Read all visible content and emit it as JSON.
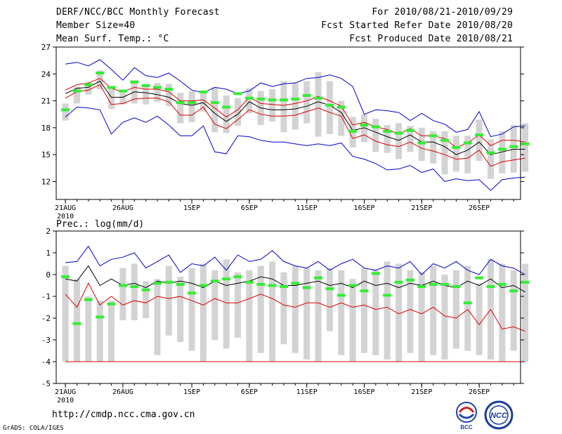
{
  "header": {
    "title": "DERF/NCC/BCC Monthly Forecast",
    "member_size": "Member Size=40",
    "variable": "Mean Surf. Temp.: °C",
    "period": "For 2010/08/21-2010/09/29",
    "fcst_started": "Fcst Started Refer Date 2010/08/20",
    "fcst_produced": "Fcst Produced Date 2010/08/21"
  },
  "footer": {
    "url": "http://cmdp.ncc.cma.gov.cn",
    "credit": "GrADS: COLA/IGES",
    "logo_bcc": "BCC",
    "logo_ncc": "NCC"
  },
  "colors": {
    "max_line": "#0000cc",
    "mean_line": "#000000",
    "band_line": "#dd0000",
    "box": "#d3d3d3",
    "obs": "#33ee33"
  },
  "chart_data": [
    {
      "type": "box-line",
      "title": "Mean Surf. Temp.: °C",
      "ylim": [
        10,
        27
      ],
      "yticks": [
        12,
        15,
        18,
        21,
        24,
        27
      ],
      "xticks": [
        {
          "day": 1,
          "label": "21AUG",
          "sub": "2010"
        },
        {
          "day": 6,
          "label": "26AUG"
        },
        {
          "day": 12,
          "label": "1SEP"
        },
        {
          "day": 17,
          "label": "6SEP"
        },
        {
          "day": 22,
          "label": "11SEP"
        },
        {
          "day": 27,
          "label": "16SEP"
        },
        {
          "day": 32,
          "label": "21SEP"
        },
        {
          "day": 37,
          "label": "26SEP"
        }
      ],
      "xlim": [
        0.2,
        40.6
      ],
      "series": [
        {
          "name": "max",
          "color": "#0000cc",
          "values": [
            25.1,
            25.3,
            24.9,
            25.6,
            24.5,
            23.3,
            24.7,
            23.8,
            23.6,
            24.1,
            23.2,
            22.2,
            21.9,
            22.5,
            22.3,
            21.8,
            22.1,
            23.0,
            22.6,
            22.9,
            23.0,
            23.5,
            23.6,
            23.9,
            23.5,
            22.6,
            19.5,
            20.0,
            19.9,
            19.7,
            18.8,
            19.6,
            18.8,
            18.4,
            17.5,
            17.8,
            19.8,
            17.0,
            17.3,
            18.1,
            18.2
          ]
        },
        {
          "name": "upper",
          "color": "#dd0000",
          "values": [
            22.2,
            22.8,
            23.0,
            23.5,
            22.4,
            22.0,
            22.5,
            22.3,
            22.3,
            22.0,
            21.0,
            21.0,
            21.1,
            20.2,
            19.2,
            20.0,
            21.4,
            20.7,
            20.6,
            20.5,
            20.7,
            21.0,
            21.5,
            21.0,
            20.4,
            18.3,
            18.6,
            18.1,
            17.8,
            17.3,
            17.9,
            17.1,
            17.1,
            16.8,
            15.8,
            16.3,
            17.2,
            16.0,
            16.6,
            16.6,
            16.4
          ]
        },
        {
          "name": "mean",
          "color": "#000000",
          "values": [
            21.8,
            22.4,
            22.5,
            23.2,
            21.4,
            21.4,
            22.0,
            21.9,
            21.7,
            21.4,
            20.7,
            20.5,
            20.8,
            19.6,
            18.7,
            19.5,
            20.9,
            20.2,
            20.0,
            20.0,
            20.1,
            20.4,
            20.9,
            20.5,
            19.7,
            17.7,
            18.0,
            17.5,
            17.0,
            16.6,
            17.2,
            16.4,
            16.4,
            15.9,
            15.0,
            15.5,
            16.4,
            15.0,
            15.3,
            15.6,
            15.6
          ]
        },
        {
          "name": "lower",
          "color": "#dd0000",
          "values": [
            21.3,
            22.0,
            22.2,
            22.8,
            20.6,
            20.7,
            21.2,
            21.3,
            21.3,
            20.9,
            19.4,
            19.4,
            20.3,
            18.4,
            17.9,
            18.9,
            20.0,
            19.5,
            19.3,
            19.3,
            19.4,
            19.8,
            20.2,
            19.7,
            19.3,
            16.8,
            17.2,
            16.5,
            16.1,
            15.9,
            16.4,
            15.7,
            15.4,
            15.0,
            14.5,
            14.6,
            15.5,
            13.7,
            14.2,
            14.4,
            14.6
          ]
        },
        {
          "name": "min",
          "color": "#0000cc",
          "values": [
            19.2,
            20.3,
            20.2,
            20.0,
            17.3,
            18.6,
            19.1,
            18.6,
            19.3,
            18.3,
            17.1,
            17.1,
            18.2,
            15.3,
            15.1,
            17.1,
            17.0,
            16.6,
            16.4,
            16.4,
            16.2,
            16.0,
            16.2,
            16.0,
            16.3,
            14.8,
            14.5,
            14.0,
            13.3,
            13.4,
            13.8,
            13.0,
            13.4,
            12.0,
            12.3,
            12.1,
            12.2,
            11.0,
            12.2,
            12.4,
            12.5
          ]
        }
      ],
      "boxes": [
        [
          18.8,
          20.7
        ],
        [
          20.7,
          22.6
        ],
        [
          21.7,
          23.0
        ],
        [
          22.3,
          24.4
        ],
        [
          20.1,
          22.6
        ],
        [
          20.6,
          22.1
        ],
        [
          20.7,
          23.3
        ],
        [
          20.6,
          22.7
        ],
        [
          20.9,
          23.0
        ],
        [
          20.4,
          22.9
        ],
        [
          18.5,
          21.9
        ],
        [
          18.6,
          22.1
        ],
        [
          19.8,
          22.1
        ],
        [
          17.5,
          22.5
        ],
        [
          17.4,
          21.6
        ],
        [
          18.2,
          21.3
        ],
        [
          19.6,
          22.4
        ],
        [
          18.3,
          22.1
        ],
        [
          18.7,
          22.3
        ],
        [
          17.5,
          23.2
        ],
        [
          17.8,
          23.0
        ],
        [
          18.5,
          23.2
        ],
        [
          17.0,
          24.2
        ],
        [
          17.3,
          23.2
        ],
        [
          17.1,
          21.0
        ],
        [
          15.8,
          19.2
        ],
        [
          16.4,
          19.5
        ],
        [
          15.3,
          19.0
        ],
        [
          15.2,
          18.3
        ],
        [
          14.5,
          18.5
        ],
        [
          15.3,
          18.2
        ],
        [
          14.3,
          18.0
        ],
        [
          14.0,
          17.6
        ],
        [
          12.8,
          17.6
        ],
        [
          13.1,
          17.1
        ],
        [
          12.9,
          17.1
        ],
        [
          14.3,
          18.9
        ],
        [
          12.3,
          16.7
        ],
        [
          12.9,
          17.6
        ],
        [
          13.0,
          18.3
        ],
        [
          13.1,
          18.5
        ]
      ],
      "observed": [
        20.0,
        22.1,
        22.8,
        24.1,
        22.5,
        22.1,
        23.1,
        22.7,
        22.5,
        22.3,
        20.8,
        20.8,
        22.0,
        20.8,
        20.3,
        21.8,
        21.3,
        21.2,
        21.1,
        21.1,
        21.2,
        21.6,
        21.3,
        20.5,
        20.3,
        17.6,
        18.3,
        18.1,
        17.6,
        17.4,
        17.7,
        16.3,
        17.1,
        16.6,
        15.8,
        16.3,
        17.2,
        15.2,
        15.6,
        15.9,
        16.2
      ]
    },
    {
      "type": "box-line",
      "title": "Prec.: log(mm/d)",
      "ylim": [
        -5,
        2
      ],
      "yticks": [
        -5,
        -4,
        -3,
        -2,
        -1,
        0,
        1,
        2
      ],
      "xticks": [
        {
          "day": 1,
          "label": "21AUG",
          "sub": "2010"
        },
        {
          "day": 6,
          "label": "26AUG"
        },
        {
          "day": 12,
          "label": "1SEP"
        },
        {
          "day": 17,
          "label": "6SEP"
        },
        {
          "day": 22,
          "label": "11SEP"
        },
        {
          "day": 27,
          "label": "16SEP"
        },
        {
          "day": 32,
          "label": "21SEP"
        },
        {
          "day": 37,
          "label": "26SEP"
        }
      ],
      "xlim": [
        0.2,
        40.6
      ],
      "series": [
        {
          "name": "max",
          "color": "#0000cc",
          "values": [
            0.55,
            0.6,
            1.3,
            0.4,
            0.7,
            0.8,
            1.0,
            0.3,
            0.6,
            0.9,
            0.1,
            0.5,
            0.4,
            0.8,
            0.2,
            0.9,
            0.6,
            0.7,
            1.1,
            0.6,
            0.4,
            0.3,
            0.6,
            0.2,
            0.5,
            0.7,
            0.3,
            0.2,
            0.4,
            0.3,
            0.6,
            0.0,
            0.5,
            0.3,
            0.6,
            0.2,
            0.0,
            0.7,
            0.4,
            0.3,
            0.0
          ]
        },
        {
          "name": "mean",
          "color": "#000000",
          "values": [
            -0.2,
            -0.3,
            0.4,
            -0.5,
            -0.2,
            -0.5,
            -0.4,
            -0.6,
            -0.3,
            -0.4,
            -0.3,
            -0.4,
            -0.6,
            -0.3,
            -0.5,
            -0.4,
            -0.3,
            -0.1,
            -0.2,
            -0.5,
            -0.5,
            -0.4,
            -0.3,
            -0.5,
            -0.4,
            -0.6,
            -0.3,
            -0.5,
            -0.4,
            -0.6,
            -0.4,
            -0.5,
            -0.3,
            -0.5,
            -0.6,
            -0.3,
            -0.5,
            -0.2,
            -0.6,
            -0.5,
            -0.8
          ]
        },
        {
          "name": "lower",
          "color": "#dd0000",
          "values": [
            -0.9,
            -1.5,
            -0.4,
            -1.4,
            -1.0,
            -1.4,
            -1.2,
            -1.3,
            -1.0,
            -1.1,
            -1.0,
            -1.2,
            -1.4,
            -1.1,
            -1.3,
            -1.3,
            -1.1,
            -0.9,
            -1.1,
            -1.4,
            -1.5,
            -1.3,
            -1.3,
            -1.5,
            -1.3,
            -1.5,
            -1.4,
            -1.6,
            -1.5,
            -1.8,
            -1.6,
            -1.8,
            -1.5,
            -1.9,
            -2.0,
            -1.6,
            -2.3,
            -1.6,
            -2.5,
            -2.4,
            -2.6
          ]
        },
        {
          "name": "floor",
          "color": "#dd0000",
          "values": [
            -4.0,
            -4.0,
            -4.0,
            -4.0,
            -4.0,
            -4.0,
            -4.0,
            -4.0,
            -4.0,
            -4.0,
            -4.0,
            -4.0,
            -4.0,
            -4.0,
            -4.0,
            -4.0,
            -4.0,
            -4.0,
            -4.0,
            -4.0,
            -4.0,
            -4.0,
            -4.0,
            -4.0,
            -4.0,
            -4.0,
            -4.0,
            -4.0,
            -4.0,
            -4.0,
            -4.0,
            -4.0,
            -4.0,
            -4.0,
            -4.0,
            -4.0,
            -4.0,
            -4.0,
            -4.0,
            -4.0,
            -4.0
          ]
        }
      ],
      "boxes": [
        [
          -4.0,
          0.4
        ],
        [
          -4.0,
          -0.2
        ],
        [
          -4.0,
          -1.0
        ],
        [
          -4.0,
          -1.2
        ],
        [
          -4.0,
          -1.2
        ],
        [
          -2.1,
          0.3
        ],
        [
          -2.1,
          0.5
        ],
        [
          -2.0,
          -0.3
        ],
        [
          -3.7,
          -0.2
        ],
        [
          -2.8,
          0.4
        ],
        [
          -3.1,
          -0.1
        ],
        [
          -3.5,
          0.3
        ],
        [
          -4.0,
          0.5
        ],
        [
          -3.0,
          0.2
        ],
        [
          -3.4,
          0.7
        ],
        [
          -2.9,
          0.1
        ],
        [
          -4.0,
          0.2
        ],
        [
          -3.6,
          0.4
        ],
        [
          -4.0,
          0.6
        ],
        [
          -3.2,
          0.1
        ],
        [
          -3.6,
          0.4
        ],
        [
          -3.9,
          0.3
        ],
        [
          -4.0,
          0.2
        ],
        [
          -2.6,
          0.3
        ],
        [
          -3.7,
          0.2
        ],
        [
          -4.0,
          -0.2
        ],
        [
          -3.6,
          0.3
        ],
        [
          -3.7,
          0.2
        ],
        [
          -3.9,
          0.6
        ],
        [
          -4.0,
          0.5
        ],
        [
          -3.6,
          0.2
        ],
        [
          -4.0,
          0.1
        ],
        [
          -3.7,
          0.4
        ],
        [
          -3.9,
          0.0
        ],
        [
          -3.4,
          0.2
        ],
        [
          -3.5,
          0.4
        ],
        [
          -3.7,
          -0.4
        ],
        [
          -3.9,
          0.7
        ],
        [
          -4.0,
          0.5
        ],
        [
          -3.5,
          0.2
        ],
        [
          -4.0,
          0.5
        ]
      ],
      "observed": [
        -0.1,
        -2.25,
        -1.15,
        -1.95,
        -1.35,
        -0.5,
        -0.55,
        -0.7,
        -0.4,
        -0.35,
        -0.45,
        -0.85,
        -0.5,
        -0.3,
        -0.2,
        -0.1,
        -0.35,
        -0.45,
        -0.5,
        -0.55,
        -0.4,
        -0.6,
        -0.15,
        -0.65,
        -0.95,
        -0.5,
        -0.75,
        0.05,
        -0.95,
        -0.35,
        -0.25,
        -0.55,
        -0.45,
        -0.45,
        -0.55,
        -1.3,
        -0.15,
        -0.55,
        -0.45,
        -0.75,
        -0.35
      ]
    }
  ]
}
